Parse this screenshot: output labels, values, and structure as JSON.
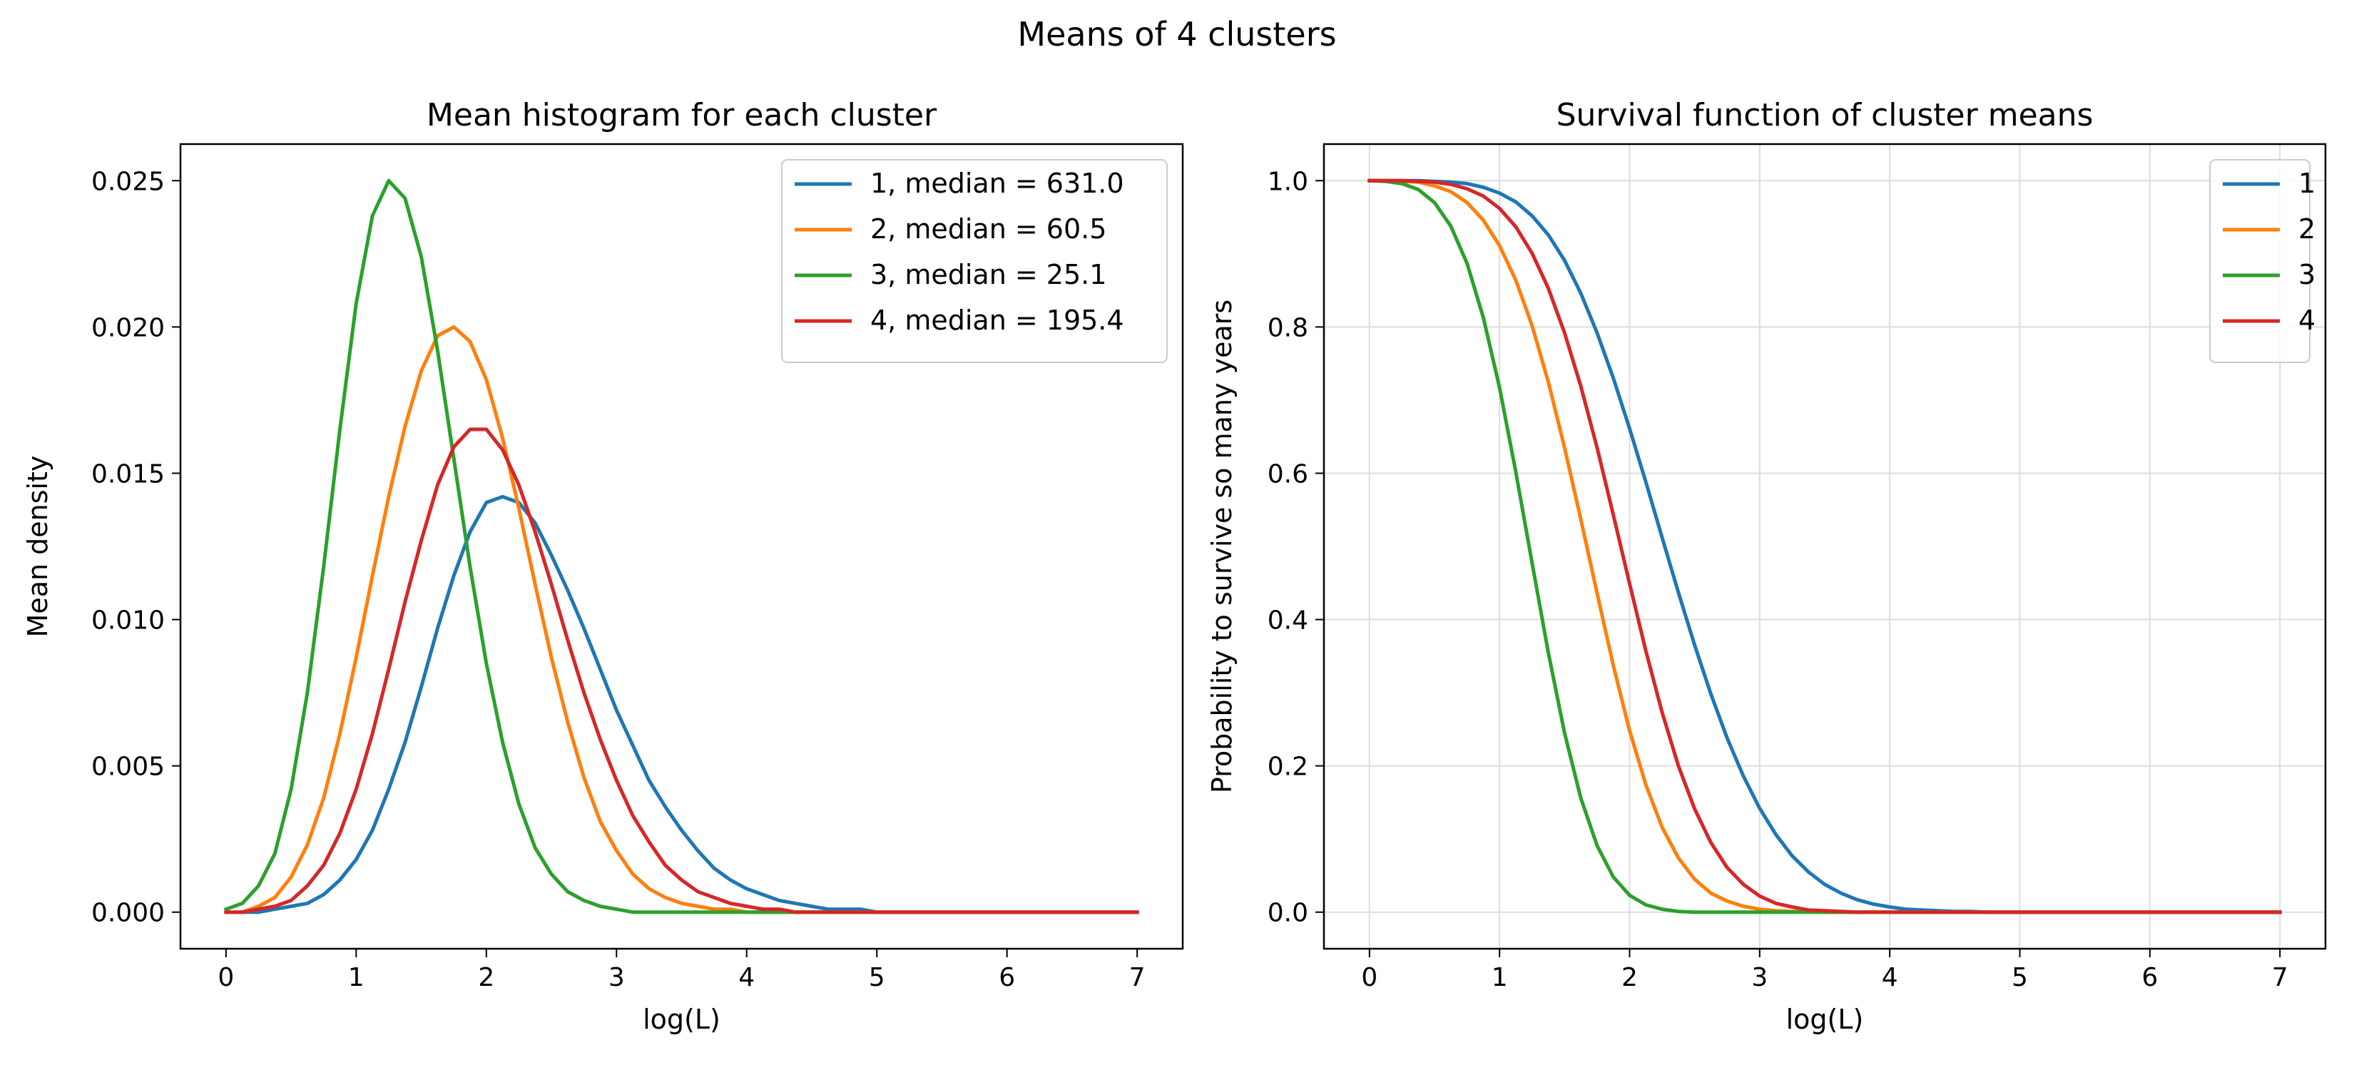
{
  "figure": {
    "title": "Means of 4 clusters"
  },
  "chart_data": [
    {
      "type": "line",
      "title": "Mean histogram for each cluster",
      "xlabel": "log(L)",
      "ylabel": "Mean density",
      "xlim": [
        -0.35,
        7.35
      ],
      "ylim": [
        -0.00125,
        0.02625
      ],
      "xticks": [
        0,
        1,
        2,
        3,
        4,
        5,
        6,
        7
      ],
      "xtick_labels": [
        "0",
        "1",
        "2",
        "3",
        "4",
        "5",
        "6",
        "7"
      ],
      "yticks": [
        0,
        0.005,
        0.01,
        0.015,
        0.02,
        0.025
      ],
      "ytick_labels": [
        "0.000",
        "0.005",
        "0.010",
        "0.015",
        "0.020",
        "0.025"
      ],
      "grid": false,
      "legend_position": "upper right",
      "x_start": 0,
      "x_step": 0.125,
      "series": [
        {
          "name": "1, median = 631.0",
          "color": "#1f77b4",
          "values": [
            0.0,
            0.0,
            0.0,
            0.0001,
            0.0002,
            0.0003,
            0.0006,
            0.0011,
            0.0018,
            0.0028,
            0.0042,
            0.0058,
            0.0077,
            0.0097,
            0.0115,
            0.013,
            0.014,
            0.0142,
            0.014,
            0.0133,
            0.0122,
            0.011,
            0.0097,
            0.0083,
            0.0069,
            0.0057,
            0.0045,
            0.0036,
            0.0028,
            0.0021,
            0.0015,
            0.0011,
            0.0008,
            0.0006,
            0.0004,
            0.0003,
            0.0002,
            0.0001,
            0.0001,
            0.0001,
            0.0,
            0.0,
            0.0,
            0.0,
            0.0,
            0.0,
            0.0,
            0.0,
            0.0,
            0.0,
            0.0,
            0.0,
            0.0,
            0.0,
            0.0,
            0.0,
            0.0
          ]
        },
        {
          "name": "2, median = 60.5",
          "color": "#ff7f0e",
          "values": [
            0.0,
            0.0,
            0.0002,
            0.0005,
            0.0012,
            0.0023,
            0.0039,
            0.0061,
            0.0087,
            0.0115,
            0.0142,
            0.0166,
            0.0185,
            0.0197,
            0.02,
            0.0195,
            0.0182,
            0.0162,
            0.0138,
            0.0112,
            0.0087,
            0.0065,
            0.0046,
            0.0031,
            0.0021,
            0.0013,
            0.0008,
            0.0005,
            0.0003,
            0.0002,
            0.0001,
            0.0001,
            0.0,
            0.0,
            0.0,
            0.0,
            0.0,
            0.0,
            0.0,
            0.0,
            0.0,
            0.0,
            0.0,
            0.0,
            0.0,
            0.0,
            0.0,
            0.0,
            0.0,
            0.0,
            0.0,
            0.0,
            0.0,
            0.0,
            0.0,
            0.0,
            0.0
          ]
        },
        {
          "name": "3, median = 25.1",
          "color": "#2ca02c",
          "values": [
            0.0001,
            0.0003,
            0.0009,
            0.002,
            0.0042,
            0.0075,
            0.0118,
            0.0165,
            0.0208,
            0.0238,
            0.025,
            0.0244,
            0.0224,
            0.0192,
            0.0155,
            0.0118,
            0.0085,
            0.0058,
            0.0037,
            0.0022,
            0.0013,
            0.0007,
            0.0004,
            0.0002,
            0.0001,
            0.0,
            0.0,
            0.0,
            0.0,
            0.0,
            0.0,
            0.0,
            0.0,
            0.0,
            0.0,
            0.0,
            0.0,
            0.0,
            0.0,
            0.0,
            0.0,
            0.0,
            0.0,
            0.0,
            0.0,
            0.0,
            0.0,
            0.0,
            0.0,
            0.0,
            0.0,
            0.0,
            0.0,
            0.0,
            0.0,
            0.0,
            0.0
          ]
        },
        {
          "name": "4, median = 195.4",
          "color": "#d62728",
          "values": [
            0.0,
            0.0,
            0.0001,
            0.0002,
            0.0004,
            0.0009,
            0.0016,
            0.0027,
            0.0042,
            0.0061,
            0.0083,
            0.0106,
            0.0127,
            0.0146,
            0.0159,
            0.0165,
            0.0165,
            0.0158,
            0.0146,
            0.013,
            0.0112,
            0.0093,
            0.0075,
            0.0059,
            0.0045,
            0.0033,
            0.0024,
            0.0016,
            0.0011,
            0.0007,
            0.0005,
            0.0003,
            0.0002,
            0.0001,
            0.0001,
            0.0,
            0.0,
            0.0,
            0.0,
            0.0,
            0.0,
            0.0,
            0.0,
            0.0,
            0.0,
            0.0,
            0.0,
            0.0,
            0.0,
            0.0,
            0.0,
            0.0,
            0.0,
            0.0,
            0.0,
            0.0,
            0.0
          ]
        }
      ]
    },
    {
      "type": "line",
      "title": "Survival function of cluster means",
      "xlabel": "log(L)",
      "ylabel": "Probability to survive so many years",
      "xlim": [
        -0.35,
        7.35
      ],
      "ylim": [
        -0.05,
        1.05
      ],
      "xticks": [
        0,
        1,
        2,
        3,
        4,
        5,
        6,
        7
      ],
      "xtick_labels": [
        "0",
        "1",
        "2",
        "3",
        "4",
        "5",
        "6",
        "7"
      ],
      "yticks": [
        0,
        0.2,
        0.4,
        0.6,
        0.8,
        1
      ],
      "ytick_labels": [
        "0.0",
        "0.2",
        "0.4",
        "0.6",
        "0.8",
        "1.0"
      ],
      "grid": true,
      "legend_position": "upper right",
      "x_start": 0,
      "x_step": 0.125,
      "series": [
        {
          "name": "1",
          "color": "#1f77b4",
          "values": [
            1.0,
            1.0,
            1.0,
            1.0,
            0.999,
            0.998,
            0.996,
            0.991,
            0.983,
            0.971,
            0.952,
            0.926,
            0.891,
            0.846,
            0.792,
            0.73,
            0.661,
            0.588,
            0.512,
            0.437,
            0.365,
            0.298,
            0.238,
            0.186,
            0.142,
            0.106,
            0.077,
            0.055,
            0.038,
            0.026,
            0.017,
            0.011,
            0.007,
            0.004,
            0.003,
            0.002,
            0.001,
            0.001,
            0.0,
            0.0,
            0.0,
            0.0,
            0.0,
            0.0,
            0.0,
            0.0,
            0.0,
            0.0,
            0.0,
            0.0,
            0.0,
            0.0,
            0.0,
            0.0,
            0.0,
            0.0,
            0.0
          ]
        },
        {
          "name": "2",
          "color": "#ff7f0e",
          "values": [
            1.0,
            1.0,
            0.999,
            0.998,
            0.993,
            0.985,
            0.97,
            0.946,
            0.911,
            0.864,
            0.802,
            0.725,
            0.635,
            0.537,
            0.436,
            0.337,
            0.248,
            0.174,
            0.116,
            0.074,
            0.045,
            0.026,
            0.015,
            0.008,
            0.004,
            0.002,
            0.001,
            0.001,
            0.0,
            0.0,
            0.0,
            0.0,
            0.0,
            0.0,
            0.0,
            0.0,
            0.0,
            0.0,
            0.0,
            0.0,
            0.0,
            0.0,
            0.0,
            0.0,
            0.0,
            0.0,
            0.0,
            0.0,
            0.0,
            0.0,
            0.0,
            0.0,
            0.0,
            0.0,
            0.0,
            0.0,
            0.0
          ]
        },
        {
          "name": "3",
          "color": "#2ca02c",
          "values": [
            1.0,
            0.999,
            0.996,
            0.988,
            0.97,
            0.938,
            0.887,
            0.813,
            0.717,
            0.602,
            0.478,
            0.355,
            0.245,
            0.156,
            0.091,
            0.048,
            0.023,
            0.01,
            0.004,
            0.001,
            0.0,
            0.0,
            0.0,
            0.0,
            0.0,
            0.0,
            0.0,
            0.0,
            0.0,
            0.0,
            0.0,
            0.0,
            0.0,
            0.0,
            0.0,
            0.0,
            0.0,
            0.0,
            0.0,
            0.0,
            0.0,
            0.0,
            0.0,
            0.0,
            0.0,
            0.0,
            0.0,
            0.0,
            0.0,
            0.0,
            0.0,
            0.0,
            0.0,
            0.0,
            0.0,
            0.0,
            0.0
          ]
        },
        {
          "name": "4",
          "color": "#d62728",
          "values": [
            1.0,
            1.0,
            1.0,
            0.999,
            0.998,
            0.995,
            0.989,
            0.979,
            0.962,
            0.937,
            0.901,
            0.853,
            0.792,
            0.719,
            0.635,
            0.543,
            0.449,
            0.357,
            0.273,
            0.2,
            0.141,
            0.095,
            0.061,
            0.038,
            0.022,
            0.012,
            0.007,
            0.003,
            0.002,
            0.001,
            0.0,
            0.0,
            0.0,
            0.0,
            0.0,
            0.0,
            0.0,
            0.0,
            0.0,
            0.0,
            0.0,
            0.0,
            0.0,
            0.0,
            0.0,
            0.0,
            0.0,
            0.0,
            0.0,
            0.0,
            0.0,
            0.0,
            0.0,
            0.0,
            0.0,
            0.0,
            0.0
          ]
        }
      ]
    }
  ]
}
